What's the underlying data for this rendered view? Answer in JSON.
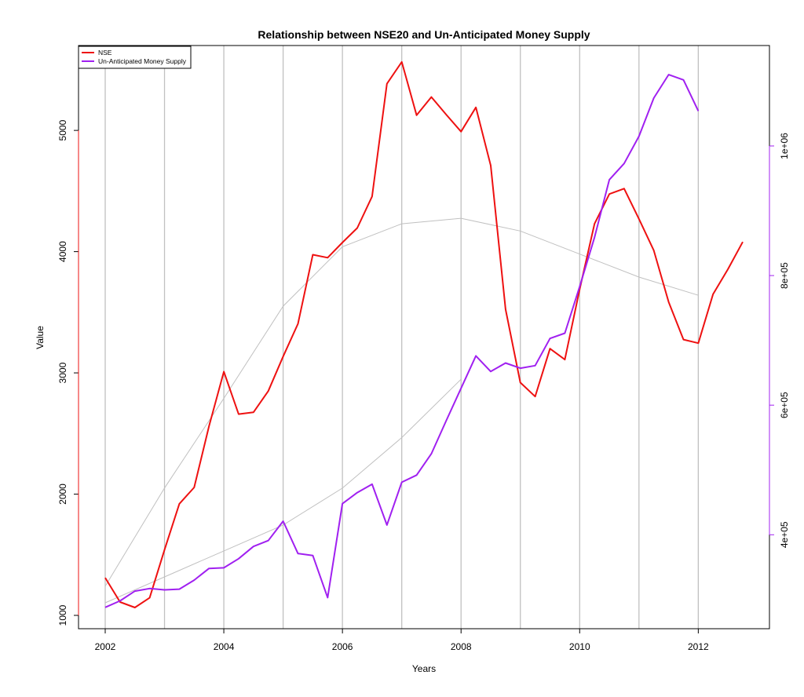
{
  "chart_data": {
    "type": "line",
    "title": "Relationship between NSE20 and Un-Anticipated Money Supply",
    "xlabel": "Years",
    "ylabel": "Value",
    "x_ticks": [
      "2002",
      "2004",
      "2006",
      "2008",
      "2010",
      "2012"
    ],
    "y_left_ticks": [
      "1000",
      "2000",
      "3000",
      "4000",
      "5000"
    ],
    "y_right_ticks": [
      "4e+05",
      "6e+05",
      "8e+05",
      "1e+06"
    ],
    "xlim": [
      2001.55,
      2013.2
    ],
    "ylim_left": [
      890,
      5700
    ],
    "ylim_right": [
      255000,
      1155000
    ],
    "grid_years": [
      2002,
      2003,
      2004,
      2005,
      2006,
      2007,
      2008,
      2009,
      2010,
      2011,
      2012
    ],
    "legend": {
      "position": "top-left",
      "entries": [
        "NSE",
        "Un-Anticipated Money Supply"
      ]
    },
    "colors": {
      "nse": "#ee1111",
      "money": "#a020f0",
      "trend": "#c0c0c0",
      "grid": "#c0c0c0"
    },
    "series": [
      {
        "name": "NSE",
        "axis": "left",
        "x": [
          2002.0,
          2002.25,
          2002.5,
          2002.75,
          2003.0,
          2003.25,
          2003.5,
          2003.75,
          2004.0,
          2004.25,
          2004.5,
          2004.75,
          2005.0,
          2005.25,
          2005.5,
          2005.75,
          2006.0,
          2006.25,
          2006.5,
          2006.75,
          2007.0,
          2007.25,
          2007.5,
          2007.75,
          2008.0,
          2008.25,
          2008.5,
          2008.75,
          2009.0,
          2009.25,
          2009.5,
          2009.75,
          2010.0,
          2010.25,
          2010.5,
          2010.75,
          2011.0,
          2011.25,
          2011.5,
          2011.75,
          2012.0,
          2012.25,
          2012.5,
          2012.75
        ],
        "values": [
          1310,
          1110,
          1065,
          1145,
          1540,
          1920,
          2055,
          2560,
          3010,
          2660,
          2675,
          2850,
          3135,
          3405,
          3975,
          3950,
          4075,
          4195,
          4455,
          5385,
          5565,
          5125,
          5275,
          5130,
          4990,
          5190,
          4710,
          3525,
          2920,
          2805,
          3200,
          3110,
          3690,
          4230,
          4475,
          4520,
          4270,
          4010,
          3585,
          3275,
          3245,
          3650,
          3855,
          4080
        ]
      },
      {
        "name": "Un-Anticipated Money Supply",
        "axis": "right",
        "x": [
          2002.0,
          2002.25,
          2002.5,
          2002.75,
          2003.0,
          2003.25,
          2003.5,
          2003.75,
          2004.0,
          2004.25,
          2004.5,
          2004.75,
          2005.0,
          2005.25,
          2005.5,
          2005.75,
          2006.0,
          2006.25,
          2006.5,
          2006.75,
          2007.0,
          2007.25,
          2007.5,
          2007.75,
          2008.0,
          2008.25,
          2008.5,
          2008.75,
          2009.0,
          2009.25,
          2009.5,
          2009.75,
          2010.0,
          2010.25,
          2010.5,
          2010.75,
          2011.0,
          2011.25,
          2011.5,
          2011.75,
          2012.0
        ],
        "values": [
          288000,
          298000,
          313000,
          317000,
          315000,
          316000,
          330000,
          348000,
          349000,
          363000,
          382000,
          391000,
          421000,
          371000,
          368000,
          303000,
          448000,
          465000,
          478000,
          415000,
          481000,
          492000,
          525000,
          576000,
          626000,
          676000,
          652000,
          665000,
          657000,
          661000,
          703000,
          711000,
          783000,
          859000,
          948000,
          973000,
          1015000,
          1074000,
          1110000,
          1102000,
          1054000
        ]
      }
    ],
    "trend_curves": [
      {
        "axis": "left",
        "x": [
          2002.0,
          2003.0,
          2004.0,
          2005.0,
          2006.0,
          2007.0,
          2008.0,
          2009.0,
          2010.0,
          2011.0,
          2012.0
        ],
        "values": [
          1240,
          2050,
          2790,
          3550,
          4040,
          4230,
          4275,
          4170,
          3980,
          3790,
          3640
        ]
      },
      {
        "axis": "right",
        "x": [
          2002.0,
          2003.0,
          2004.0,
          2005.0,
          2006.0,
          2007.0,
          2008.0
        ],
        "values": [
          295000,
          335000,
          375000,
          415000,
          472000,
          550000,
          640000
        ]
      }
    ]
  }
}
